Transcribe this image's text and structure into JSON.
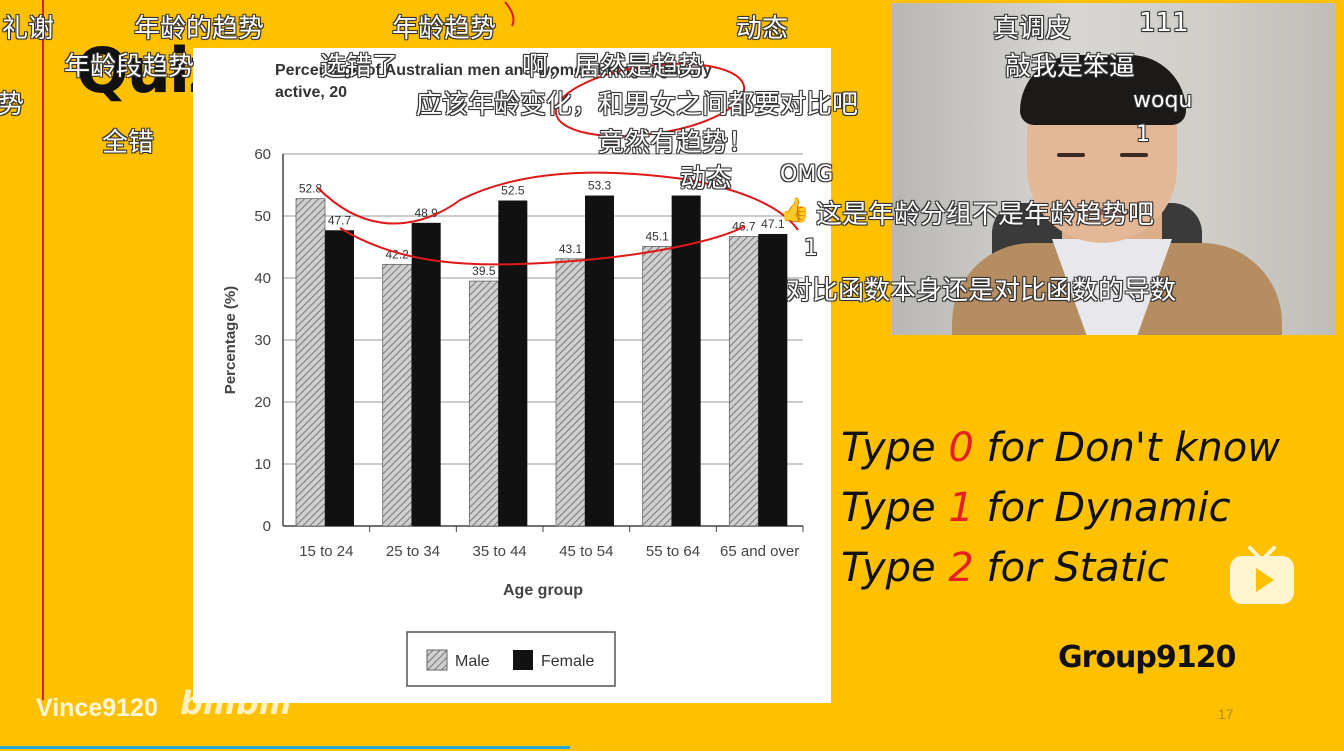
{
  "slide": {
    "title": "Quiz",
    "quiz_lines": [
      {
        "prefix": "Type ",
        "num": "0",
        "suffix": " for Don't know"
      },
      {
        "prefix": "Type ",
        "num": "1",
        "suffix": " for Dynamic"
      },
      {
        "prefix": "Type ",
        "num": "2",
        "suffix": " for Static"
      }
    ],
    "group": "Group9120",
    "page_number": "17",
    "colors": {
      "background": "#fec102",
      "accent_number": "#e52020",
      "annotation": "#e01818"
    }
  },
  "watermark": {
    "user": "Vince9120",
    "site": "bilibili",
    "icon": "tv-play-icon"
  },
  "chart_data": {
    "type": "bar",
    "title": "Percentage of Australian men and women being regularly active, 20",
    "xlabel": "Age group",
    "ylabel": "Percentage (%)",
    "ylim": [
      0,
      60
    ],
    "yticks": [
      "0",
      "10",
      "20",
      "30",
      "40",
      "50",
      "60"
    ],
    "categories": [
      "15 to 24",
      "25 to 34",
      "35 to 44",
      "45 to 54",
      "55 to 64",
      "65 and over"
    ],
    "series": [
      {
        "name": "Male",
        "values": [
          52.8,
          42.2,
          39.5,
          43.1,
          45.1,
          46.7
        ],
        "labels": [
          "52.8",
          "42.2",
          "39.5",
          "43.1",
          "45.1",
          "46.7"
        ]
      },
      {
        "name": "Female",
        "values": [
          47.7,
          48.9,
          52.5,
          53.3,
          53.3,
          47.1
        ],
        "labels": [
          "47.7",
          "48.9",
          "52.5",
          "53.3",
          "53",
          "47.1"
        ]
      }
    ],
    "grid": true,
    "legend": "bottom-center"
  },
  "danmaku": [
    "礼谢",
    "年龄的趋势",
    "年龄趋势",
    "动态",
    "真调皮",
    "111",
    "年龄段趋势",
    "选错了",
    "啊，居然是趋势",
    "敲我是笨逼",
    "势",
    "应该年龄变化，和男女之间都要对比吧",
    "woqu",
    "全错",
    "竟然有趋势！",
    "1",
    "动态",
    "OMG",
    "这是年龄分组不是年龄趋势吧",
    "1",
    "对比函数本身还是对比函数的导数"
  ]
}
